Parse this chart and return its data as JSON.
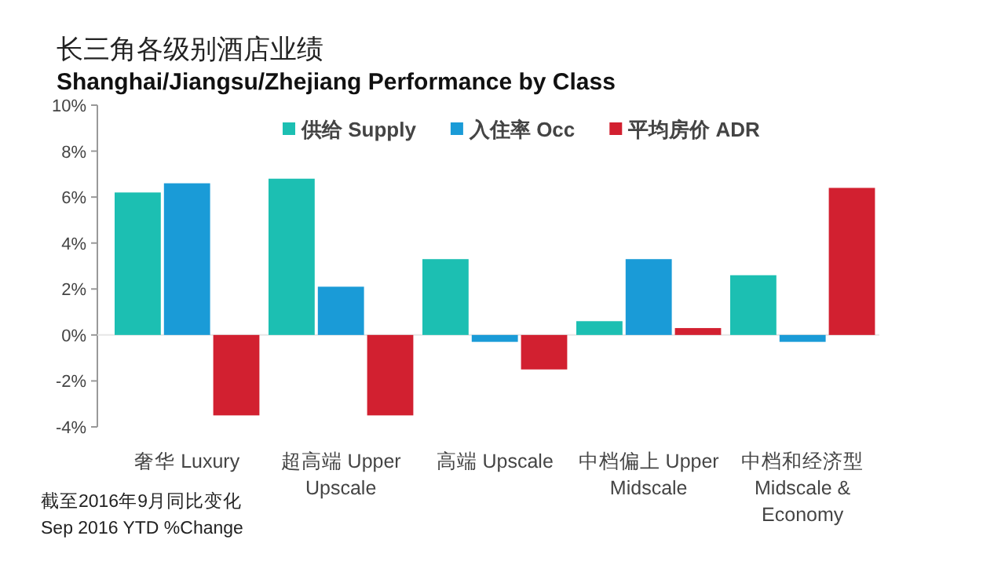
{
  "chart_data": {
    "type": "bar",
    "title": "长三角各级别酒店业绩",
    "subtitle": "Shanghai/Jiangsu/Zhejiang Performance by Class",
    "categories": [
      "奢华 Luxury",
      "超高端 Upper Upscale",
      "高端 Upscale",
      "中档偏上 Upper Midscale",
      "中档和经济型 Midscale & Economy"
    ],
    "series": [
      {
        "name": "供给 Supply",
        "color": "#1cbfb2",
        "values": [
          6.2,
          6.8,
          3.3,
          0.6,
          2.6
        ]
      },
      {
        "name": "入住率 Occ",
        "color": "#1a9bd7",
        "values": [
          6.6,
          2.1,
          -0.3,
          3.3,
          -0.3
        ]
      },
      {
        "name": "平均房价 ADR",
        "color": "#d22030",
        "values": [
          -3.5,
          -3.5,
          -1.5,
          0.3,
          6.4
        ]
      }
    ],
    "ylim": [
      -4,
      10
    ],
    "yticks": [
      {
        "value": -4,
        "label": "-4%"
      },
      {
        "value": -2,
        "label": "-2%"
      },
      {
        "value": 0,
        "label": "0%"
      },
      {
        "value": 2,
        "label": "2%"
      },
      {
        "value": 4,
        "label": "4%"
      },
      {
        "value": 6,
        "label": "6%"
      },
      {
        "value": 8,
        "label": "8%"
      },
      {
        "value": 10,
        "label": "10%"
      }
    ],
    "legend": "top",
    "annotations": [
      "截至2016年9月同比变化",
      "Sep 2016 YTD %Change"
    ]
  }
}
